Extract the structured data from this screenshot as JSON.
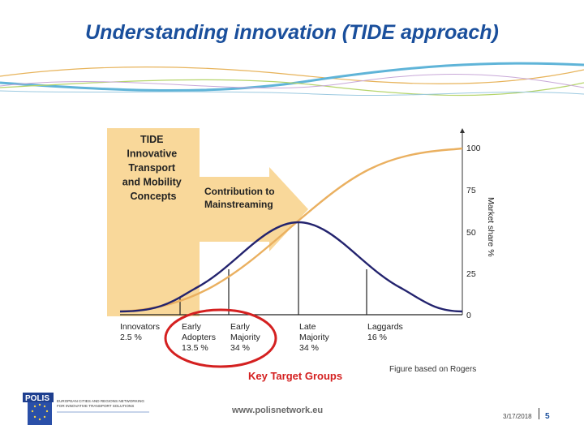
{
  "slide": {
    "title": "Understanding innovation (TIDE approach)"
  },
  "figure": {
    "tide_box_lines": [
      "TIDE",
      "Innovative",
      "Transport",
      "and Mobility",
      "Concepts"
    ],
    "arrow_label_lines": [
      "Contribution to",
      "Mainstreaming"
    ],
    "y_axis_label": "Market share %",
    "y_ticks": [
      "100",
      "75",
      "50",
      "25",
      "0"
    ],
    "groups": [
      {
        "name_lines": [
          "Innovators"
        ],
        "pct": "2.5 %"
      },
      {
        "name_lines": [
          "Early",
          "Adopters"
        ],
        "pct": "13.5 %"
      },
      {
        "name_lines": [
          "Early",
          "Majority"
        ],
        "pct": "34 %"
      },
      {
        "name_lines": [
          "Late",
          "Majority"
        ],
        "pct": "34 %"
      },
      {
        "name_lines": [
          "Laggards"
        ],
        "pct": "16 %"
      }
    ],
    "key_target_label": "Key Target Groups",
    "source_note": "Figure based on Rogers",
    "colors": {
      "box": "#f9d89a",
      "curve_s": "#eab060",
      "curve_bell": "#23236e",
      "circle": "#d42020"
    }
  },
  "footer": {
    "logo_text": "POLIS",
    "logo_tagline": [
      "EUROPEAN CITIES AND REGIONS NETWORKING",
      "FOR INNOVATIVE TRANSPORT SOLUTIONS"
    ],
    "url": "www.polisnetwork.eu",
    "date": "3/17/2018",
    "page": "5"
  }
}
